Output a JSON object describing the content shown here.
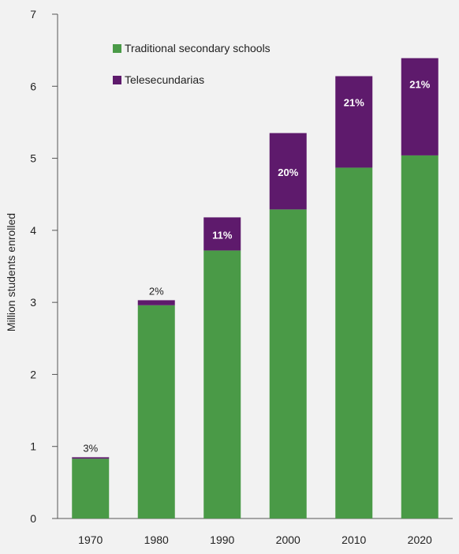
{
  "chart_data": {
    "type": "bar",
    "stacked": true,
    "categories": [
      "1970",
      "1980",
      "1990",
      "2000",
      "2010",
      "2020"
    ],
    "series": [
      {
        "name": "Traditional secondary schools",
        "color": "#4a9a47",
        "values": [
          0.83,
          2.96,
          3.72,
          4.29,
          4.87,
          5.04
        ]
      },
      {
        "name": "Telesecundarias",
        "color": "#5e1a6c",
        "values": [
          0.02,
          0.07,
          0.46,
          1.06,
          1.27,
          1.35
        ]
      }
    ],
    "share_labels": [
      "3%",
      "2%",
      "11%",
      "20%",
      "21%",
      "21%"
    ],
    "xlabel": "",
    "ylabel": "Million students enrolled",
    "ylim": [
      0,
      7
    ],
    "yticks": [
      "0",
      "1",
      "2",
      "3",
      "4",
      "5",
      "6",
      "7"
    ],
    "grid": false,
    "legend_position": "top-left"
  }
}
